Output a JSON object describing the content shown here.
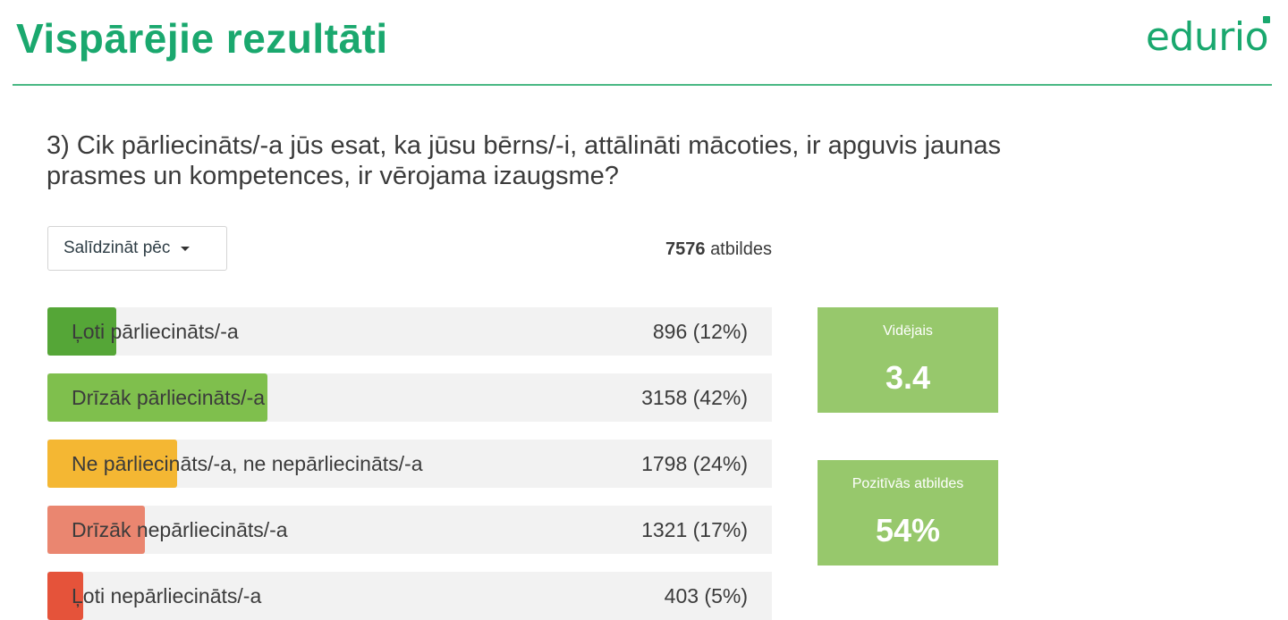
{
  "header": {
    "title": "Vispārējie rezultāti",
    "brand": "edurio",
    "accent_color": "#1aa86e"
  },
  "question": {
    "text": "3) Cik pārliecināts/-a jūs esat, ka jūsu bērns/-i, attālināti mācoties, ir apguvis jaunas prasmes un kompetences, ir vērojama izaugsme?"
  },
  "controls": {
    "compare_label": "Salīdzināt pēc",
    "compare_icon": "caret-down-icon"
  },
  "summary": {
    "responses_count": "7576",
    "responses_label": "atbildes"
  },
  "chart_data": {
    "type": "bar",
    "orientation": "horizontal",
    "total": 7576,
    "categories": [
      "Ļoti pārliecināts/-a",
      "Drīzāk pārliecināts/-a",
      "Ne pārliecināts/-a, ne nepārliecināts/-a",
      "Drīzāk nepārliecināts/-a",
      "Ļoti nepārliecināts/-a"
    ],
    "values": [
      896,
      3158,
      1798,
      1321,
      403
    ],
    "percent": [
      12,
      42,
      24,
      17,
      5
    ],
    "value_labels": [
      "896 (12%)",
      "3158 (42%)",
      "1798 (24%)",
      "1321 (17%)",
      "403 (5%)"
    ],
    "colors": [
      "#55a637",
      "#7fbf4d",
      "#f4b733",
      "#ea8670",
      "#e5533a"
    ]
  },
  "stats": {
    "average_label": "Vidējais",
    "average_value": "3.4",
    "positive_label": "Pozitīvās atbildes",
    "positive_value": "54%",
    "card_color": "#97c86c"
  }
}
